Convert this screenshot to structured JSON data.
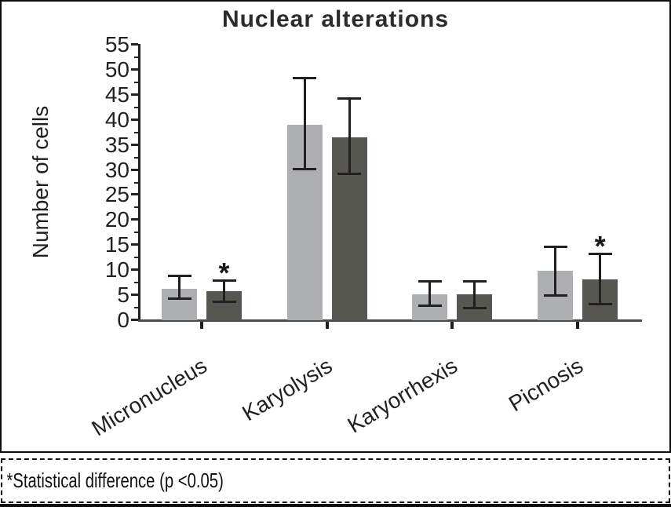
{
  "chart_data": {
    "type": "bar",
    "title": "Nuclear alterations",
    "ylabel": "Number of cells",
    "xlabel": "",
    "categories": [
      "Micronucleus",
      "Karyolysis",
      "Karyorrhexis",
      "Picnosis"
    ],
    "ylim": [
      0,
      55
    ],
    "ytick_step": 5,
    "ytick_minor_step": 2.5,
    "grid": false,
    "legend": "none",
    "axis_color": "#231f20",
    "significance_marker": "*",
    "series": [
      {
        "name": "light gray bars",
        "color": "#aeafb3",
        "values": [
          6.3,
          39.0,
          5.2,
          9.8
        ],
        "error_low": [
          4.0,
          30.0,
          2.7,
          4.7
        ],
        "error_high": [
          9.1,
          48.5,
          8.0,
          14.9
        ],
        "significant": [
          false,
          false,
          false,
          false
        ]
      },
      {
        "name": "dark gray bars",
        "color": "#565751",
        "values": [
          5.8,
          36.5,
          5.1,
          8.1
        ],
        "error_low": [
          3.5,
          29.0,
          2.2,
          3.0
        ],
        "error_high": [
          8.2,
          44.5,
          8.0,
          13.4
        ],
        "significant": [
          true,
          false,
          false,
          true
        ]
      }
    ]
  },
  "footnote": {
    "text": "*Statistical difference (p <0.05)"
  }
}
